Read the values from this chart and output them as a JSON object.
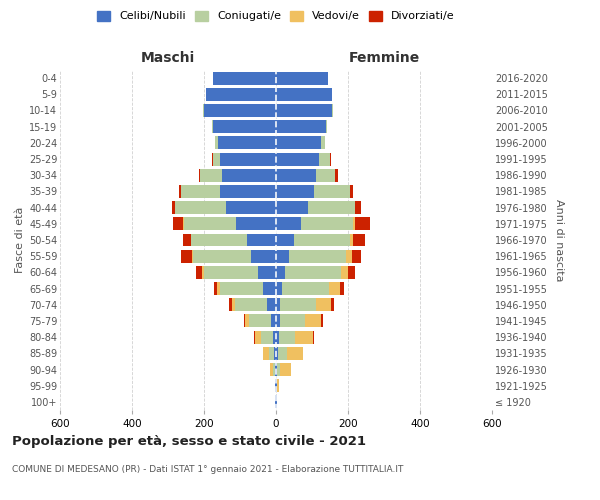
{
  "age_groups": [
    "100+",
    "95-99",
    "90-94",
    "85-89",
    "80-84",
    "75-79",
    "70-74",
    "65-69",
    "60-64",
    "55-59",
    "50-54",
    "45-49",
    "40-44",
    "35-39",
    "30-34",
    "25-29",
    "20-24",
    "15-19",
    "10-14",
    "5-9",
    "0-4"
  ],
  "birth_years": [
    "≤ 1920",
    "1921-1925",
    "1926-1930",
    "1931-1935",
    "1936-1940",
    "1941-1945",
    "1946-1950",
    "1951-1955",
    "1956-1960",
    "1961-1965",
    "1966-1970",
    "1971-1975",
    "1976-1980",
    "1981-1985",
    "1986-1990",
    "1991-1995",
    "1996-2000",
    "2001-2005",
    "2006-2010",
    "2011-2015",
    "2016-2020"
  ],
  "colors": {
    "celibe": "#4472c4",
    "coniugato": "#b8cfa0",
    "vedovo": "#f0c060",
    "divorziato": "#cc2200"
  },
  "maschi": {
    "celibe": [
      2,
      2,
      3,
      5,
      8,
      15,
      25,
      35,
      50,
      70,
      80,
      110,
      140,
      155,
      150,
      155,
      160,
      175,
      200,
      195,
      175
    ],
    "coniugato": [
      0,
      0,
      5,
      15,
      35,
      60,
      90,
      120,
      150,
      160,
      155,
      145,
      140,
      110,
      60,
      20,
      10,
      2,
      2,
      0,
      0
    ],
    "vedovo": [
      0,
      1,
      8,
      15,
      15,
      10,
      8,
      8,
      5,
      3,
      2,
      2,
      0,
      0,
      0,
      0,
      0,
      0,
      0,
      0,
      0
    ],
    "divorziato": [
      0,
      0,
      0,
      0,
      2,
      4,
      8,
      10,
      18,
      30,
      22,
      30,
      10,
      5,
      5,
      3,
      0,
      0,
      0,
      0,
      0
    ]
  },
  "femmine": {
    "nubile": [
      2,
      2,
      4,
      5,
      8,
      10,
      12,
      18,
      25,
      35,
      50,
      70,
      90,
      105,
      110,
      120,
      125,
      140,
      155,
      155,
      145
    ],
    "coniugata": [
      0,
      0,
      8,
      25,
      45,
      70,
      100,
      130,
      155,
      160,
      155,
      145,
      130,
      100,
      55,
      30,
      10,
      3,
      2,
      0,
      0
    ],
    "vedova": [
      2,
      5,
      30,
      45,
      50,
      45,
      40,
      30,
      20,
      15,
      8,
      5,
      0,
      0,
      0,
      0,
      0,
      0,
      0,
      0,
      0
    ],
    "divorziata": [
      0,
      0,
      0,
      0,
      2,
      5,
      8,
      10,
      20,
      25,
      35,
      40,
      15,
      10,
      8,
      3,
      0,
      0,
      0,
      0,
      0
    ]
  },
  "xlim": 600,
  "title": "Popolazione per età, sesso e stato civile - 2021",
  "subtitle": "COMUNE DI MEDESANO (PR) - Dati ISTAT 1° gennaio 2021 - Elaborazione TUTTITALIA.IT",
  "ylabel_left": "Fasce di età",
  "ylabel_right": "Anni di nascita",
  "xlabel_left": "Maschi",
  "xlabel_right": "Femmine",
  "legend_labels": [
    "Celibi/Nubili",
    "Coniugati/e",
    "Vedovi/e",
    "Divorziati/e"
  ],
  "background_color": "#ffffff",
  "grid_color": "#cccccc"
}
